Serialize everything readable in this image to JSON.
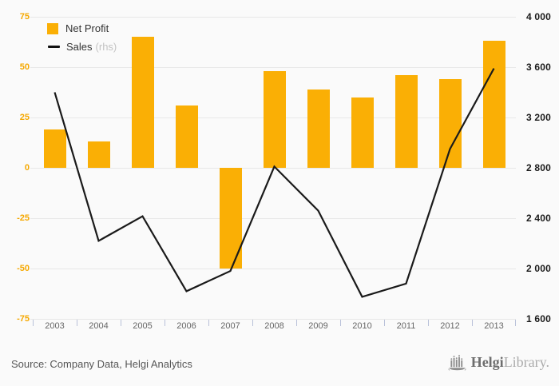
{
  "chart_data": {
    "type": "bar+line",
    "title": "",
    "categories": [
      "2003",
      "2004",
      "2005",
      "2006",
      "2007",
      "2008",
      "2009",
      "2010",
      "2011",
      "2012",
      "2013"
    ],
    "series": [
      {
        "name": "Net Profit",
        "type": "bar",
        "axis": "left",
        "color": "#FAAF05",
        "values": [
          19,
          13,
          65,
          31,
          -50,
          48,
          39,
          35,
          46,
          44,
          63
        ]
      },
      {
        "name": "Sales",
        "type": "line",
        "axis": "right",
        "color": "#1A1A1A",
        "values": [
          3400,
          2220,
          2415,
          1820,
          1980,
          2810,
          2460,
          1775,
          1880,
          2950,
          3590
        ]
      }
    ],
    "left_axis": {
      "min": -75,
      "max": 75,
      "tick_values": [
        75,
        50,
        25,
        0,
        -25,
        -50,
        -75
      ],
      "tick_labels": [
        "75",
        "50",
        "25",
        "0",
        "-25",
        "-50",
        "-75"
      ],
      "label_color": "#F5A800"
    },
    "right_axis": {
      "min": 1600,
      "max": 4000,
      "tick_values": [
        4000,
        3600,
        3200,
        2800,
        2400,
        2000,
        1600
      ],
      "tick_labels": [
        "4 000",
        "3 600",
        "3 200",
        "2 800",
        "2 400",
        "2 000",
        "1 600"
      ],
      "label_color": "#1A1A1A"
    },
    "legend": [
      {
        "label": "Net Profit",
        "suffix": ""
      },
      {
        "label": "Sales",
        "suffix": "(rhs)"
      }
    ],
    "grid": true,
    "legend_position": "top-left"
  },
  "footer": {
    "source": "Source: Company Data, Helgi Analytics",
    "logo": {
      "icon": "castle-icon",
      "bold": "Helgi",
      "light": "Library."
    }
  },
  "colors": {
    "background": "#FAFAFA",
    "bar": "#FAAF05",
    "line": "#1A1A1A",
    "left_axis_labels": "#F5A800",
    "right_axis_labels": "#1A1A1A",
    "gridline": "#E8E8E8",
    "axis_baseline": "#B9C1D9",
    "x_labels": "#666666",
    "legend_text": "#333333",
    "legend_suffix": "#C3C3C3",
    "source_text": "#575757",
    "logo_dark": "#6E6E6E",
    "logo_light": "#ABABAB"
  }
}
